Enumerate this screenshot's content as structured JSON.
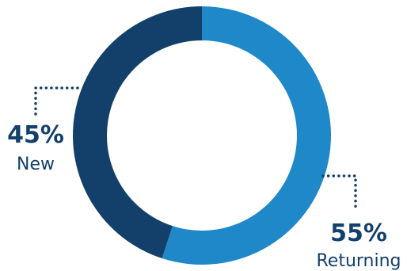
{
  "chart_data": {
    "type": "pie",
    "variant": "donut",
    "slices": [
      {
        "label": "Returning",
        "value": 55,
        "value_label": "55%",
        "color": "#1e88c9"
      },
      {
        "label": "New",
        "value": 45,
        "value_label": "45%",
        "color": "#12406b"
      }
    ],
    "label_color": "#12406b"
  }
}
